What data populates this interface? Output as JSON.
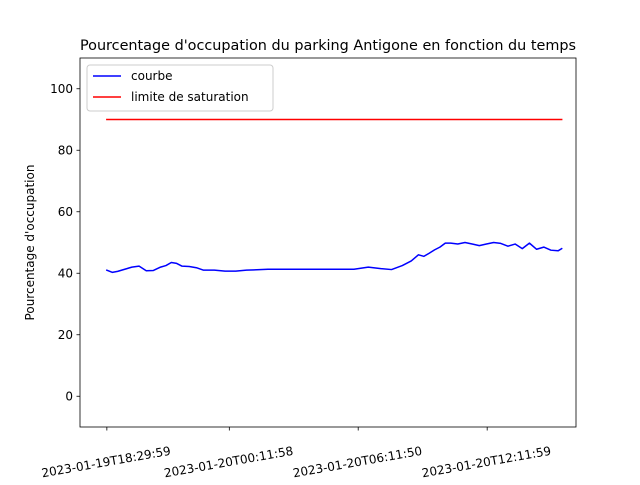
{
  "chart_data": {
    "type": "line",
    "title": "Pourcentage d'occupation du parking Antigone en fonction du temps",
    "xlabel": "",
    "ylabel": "Pourcentage d'occupation",
    "ylim": [
      -10,
      110
    ],
    "yticks": [
      0,
      20,
      40,
      60,
      80,
      100
    ],
    "xlim": [
      "2023-01-19T17:15:00",
      "2023-01-20T16:20:00"
    ],
    "xticks": [
      "2023-01-19T18:29:59",
      "2023-01-20T00:11:58",
      "2023-01-20T06:11:50",
      "2023-01-20T12:11:59"
    ],
    "x_tick_labels": [
      "2023-01-19T18:29:59",
      "2023-01-20T00:11:58",
      "2023-01-20T06:11:50",
      "2023-01-20T12:11:59"
    ],
    "grid": false,
    "legend_position": "top-left",
    "series": [
      {
        "name": "courbe",
        "color": "#0000ff",
        "x": [
          "2023-01-19T18:29:59",
          "2023-01-19T18:45:00",
          "2023-01-19T19:00:00",
          "2023-01-19T19:20:00",
          "2023-01-19T19:40:00",
          "2023-01-19T20:00:00",
          "2023-01-19T20:20:00",
          "2023-01-19T20:40:00",
          "2023-01-19T21:00:00",
          "2023-01-19T21:15:00",
          "2023-01-19T21:30:00",
          "2023-01-19T21:45:00",
          "2023-01-19T22:00:00",
          "2023-01-19T22:20:00",
          "2023-01-19T22:40:00",
          "2023-01-19T23:00:00",
          "2023-01-19T23:30:00",
          "2023-01-20T00:00:00",
          "2023-01-20T00:30:00",
          "2023-01-20T01:00:00",
          "2023-01-20T02:00:00",
          "2023-01-20T03:00:00",
          "2023-01-20T04:00:00",
          "2023-01-20T05:00:00",
          "2023-01-20T06:00:00",
          "2023-01-20T06:40:00",
          "2023-01-20T07:15:00",
          "2023-01-20T07:45:00",
          "2023-01-20T08:15:00",
          "2023-01-20T08:40:00",
          "2023-01-20T09:00:00",
          "2023-01-20T09:15:00",
          "2023-01-20T09:30:00",
          "2023-01-20T09:45:00",
          "2023-01-20T10:00:00",
          "2023-01-20T10:15:00",
          "2023-01-20T10:30:00",
          "2023-01-20T10:50:00",
          "2023-01-20T11:10:00",
          "2023-01-20T11:30:00",
          "2023-01-20T11:50:00",
          "2023-01-20T12:10:00",
          "2023-01-20T12:30:00",
          "2023-01-20T12:50:00",
          "2023-01-20T13:10:00",
          "2023-01-20T13:30:00",
          "2023-01-20T13:50:00",
          "2023-01-20T14:10:00",
          "2023-01-20T14:30:00",
          "2023-01-20T14:50:00",
          "2023-01-20T15:10:00",
          "2023-01-20T15:30:00",
          "2023-01-20T15:40:00"
        ],
        "y": [
          41,
          40.3,
          40.6,
          41.3,
          42,
          42.3,
          40.8,
          40.9,
          42,
          42.5,
          43.5,
          43.2,
          42.3,
          42.2,
          41.8,
          41,
          41,
          40.7,
          40.7,
          41,
          41.3,
          41.3,
          41.3,
          41.3,
          41.3,
          42,
          41.5,
          41.2,
          42.5,
          44,
          46,
          45.5,
          46.5,
          47.6,
          48.5,
          49.8,
          49.8,
          49.5,
          50,
          49.5,
          49,
          49.5,
          50,
          49.7,
          48.8,
          49.5,
          48,
          49.8,
          47.8,
          48.5,
          47.5,
          47.3,
          48
        ]
      },
      {
        "name": "limite de saturation",
        "color": "#ff0000",
        "x": [
          "2023-01-19T18:29:59",
          "2023-01-20T15:40:00"
        ],
        "y": [
          90,
          90
        ]
      }
    ]
  }
}
